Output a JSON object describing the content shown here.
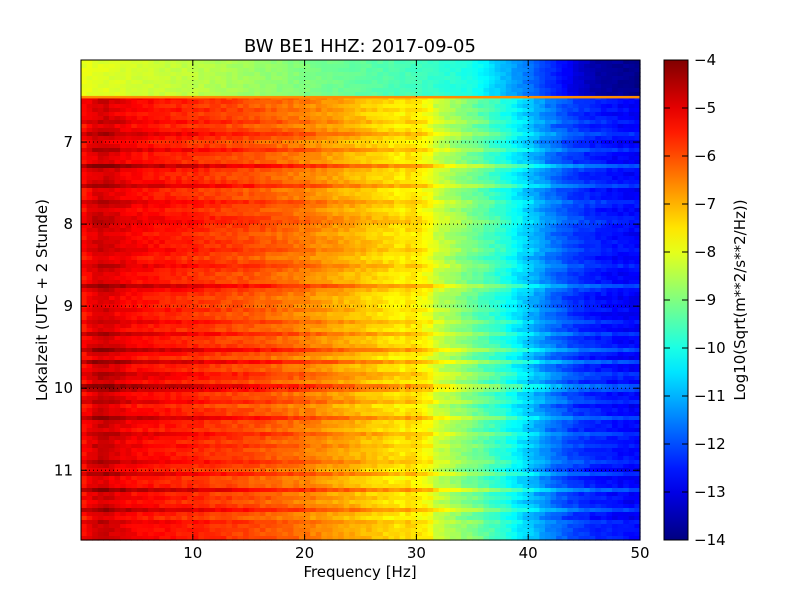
{
  "chart_data": {
    "type": "heatmap",
    "title": "BW BE1 HHZ: 2017-09-05",
    "xlabel": "Frequency [Hz]",
    "ylabel": "Lokalzeit (UTC + 2 Stunde)",
    "colorbar_label": "Log10(Sqrt(m**2/s**2/Hz))",
    "xlim": [
      0,
      50
    ],
    "ylim": [
      6.0,
      11.85
    ],
    "y_inverted": true,
    "xticks": [
      10,
      20,
      30,
      40,
      50
    ],
    "yticks": [
      7,
      8,
      9,
      10,
      11
    ],
    "color_range": [
      -14,
      -4
    ],
    "colorbar_ticks": [
      -4,
      -5,
      -6,
      -7,
      -8,
      -9,
      -10,
      -11,
      -12,
      -13,
      -14
    ],
    "colormap": "jet",
    "grid": true,
    "noise_gap_end": 6.45,
    "profile_frequencies": [
      0,
      1,
      2,
      3,
      5,
      8,
      12,
      16,
      20,
      24,
      28,
      30,
      33,
      36,
      38,
      40,
      42,
      44,
      46,
      48,
      50
    ],
    "profile_values": [
      -5.5,
      -5.0,
      -4.8,
      -5.0,
      -5.3,
      -5.5,
      -5.8,
      -6.1,
      -6.5,
      -7.0,
      -7.5,
      -7.8,
      -8.6,
      -9.4,
      -10.0,
      -10.8,
      -11.6,
      -12.2,
      -12.5,
      -12.7,
      -12.8
    ],
    "gap_profile_frequencies": [
      0,
      10,
      20,
      30,
      35,
      40,
      44,
      46,
      50
    ],
    "gap_profile_values": [
      -8.0,
      -8.4,
      -9.0,
      -9.6,
      -10.0,
      -11.6,
      -13.0,
      -13.6,
      -13.9
    ],
    "strong_rows": [
      7.3,
      7.55,
      8.75,
      9.55,
      9.7,
      10.0,
      10.35,
      11.25,
      11.5
    ],
    "weak_rows": [
      6.75,
      6.9,
      7.1,
      7.75,
      7.95,
      8.3,
      8.5,
      9.2,
      9.35,
      9.85,
      10.15,
      10.55,
      10.7,
      10.9,
      11.05,
      11.65
    ]
  }
}
